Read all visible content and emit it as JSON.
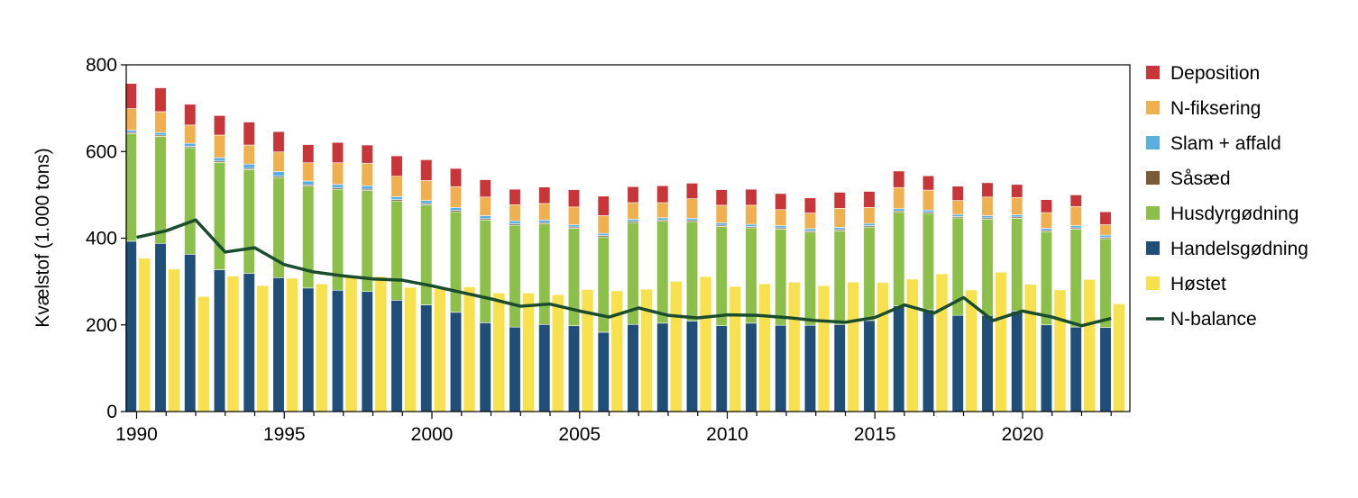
{
  "chart_data": {
    "type": "bar",
    "ylabel": "Kvælstof (1.000 tons)",
    "ylim": [
      0,
      800
    ],
    "yticks": [
      "0",
      "200",
      "400",
      "600",
      "800"
    ],
    "xticks": [
      "1990",
      "1995",
      "2000",
      "2005",
      "2010",
      "2015",
      "2020"
    ],
    "years": [
      1990,
      1991,
      1992,
      1993,
      1994,
      1995,
      1996,
      1997,
      1998,
      1999,
      2000,
      2001,
      2002,
      2003,
      2004,
      2005,
      2006,
      2007,
      2008,
      2009,
      2010,
      2011,
      2012,
      2013,
      2014,
      2015,
      2016,
      2017,
      2018,
      2019,
      2020,
      2021,
      2022,
      2023
    ],
    "legend_position": "right",
    "input_series": [
      {
        "name": "Handelsgødning",
        "color": "#1f4e79",
        "values": [
          393,
          388,
          363,
          327,
          319,
          309,
          285,
          280,
          277,
          257,
          246,
          229,
          205,
          195,
          201,
          198,
          183,
          201,
          204,
          209,
          198,
          204,
          199,
          199,
          201,
          210,
          244,
          235,
          222,
          222,
          232,
          200,
          195,
          194
        ]
      },
      {
        "name": "Husdyrgødning",
        "color": "#8dc04a",
        "values": [
          248,
          247,
          246,
          248,
          239,
          231,
          235,
          233,
          233,
          229,
          231,
          232,
          237,
          235,
          232,
          225,
          220,
          235,
          235,
          229,
          229,
          220,
          222,
          215,
          216,
          216,
          216,
          222,
          225,
          222,
          214,
          215,
          226,
          205
        ]
      },
      {
        "name": "Såsæd",
        "color": "#7b5a3a",
        "values": [
          3,
          3,
          3,
          3,
          3,
          3,
          3,
          3,
          3,
          3,
          3,
          3,
          3,
          3,
          3,
          3,
          3,
          3,
          3,
          3,
          3,
          3,
          3,
          3,
          3,
          3,
          3,
          3,
          3,
          3,
          3,
          3,
          3,
          3
        ]
      },
      {
        "name": "Slam + affald",
        "color": "#5aaee0",
        "values": [
          5,
          6,
          7,
          8,
          10,
          11,
          9,
          8,
          8,
          7,
          7,
          7,
          7,
          7,
          6,
          5,
          5,
          5,
          5,
          5,
          5,
          5,
          5,
          5,
          5,
          5,
          5,
          5,
          5,
          5,
          5,
          5,
          5,
          5
        ]
      },
      {
        "name": "N-fiksering",
        "color": "#f0b050",
        "values": [
          50,
          48,
          42,
          52,
          44,
          45,
          42,
          50,
          52,
          47,
          46,
          48,
          43,
          37,
          38,
          41,
          41,
          38,
          35,
          45,
          41,
          44,
          37,
          36,
          44,
          37,
          49,
          46,
          32,
          43,
          40,
          36,
          44,
          24
        ]
      },
      {
        "name": "Deposition",
        "color": "#c8363a",
        "values": [
          58,
          55,
          48,
          45,
          53,
          47,
          42,
          47,
          42,
          47,
          48,
          42,
          40,
          36,
          38,
          40,
          45,
          37,
          39,
          36,
          36,
          37,
          37,
          35,
          37,
          37,
          38,
          33,
          33,
          33,
          30,
          30,
          27,
          30
        ]
      }
    ],
    "harvest_series": {
      "name": "Høstet",
      "color": "#f7e14e",
      "values": [
        353,
        328,
        265,
        312,
        290,
        307,
        294,
        309,
        311,
        286,
        283,
        287,
        273,
        273,
        269,
        281,
        278,
        282,
        300,
        311,
        288,
        294,
        298,
        290,
        298,
        297,
        305,
        317,
        280,
        321,
        293,
        280,
        304,
        248
      ]
    },
    "balance_series": {
      "name": "N-balance",
      "color": "#1a4d2e",
      "values": [
        402,
        417,
        442,
        368,
        378,
        339,
        322,
        313,
        306,
        303,
        290,
        275,
        260,
        243,
        248,
        232,
        218,
        239,
        222,
        216,
        223,
        222,
        217,
        210,
        206,
        217,
        246,
        227,
        263,
        210,
        232,
        218,
        198,
        215
      ]
    },
    "legend": [
      "Deposition",
      "N-fiksering",
      "Slam + affald",
      "Såsæd",
      "Husdyrgødning",
      "Handelsgødning",
      "Høstet",
      "N-balance"
    ]
  }
}
